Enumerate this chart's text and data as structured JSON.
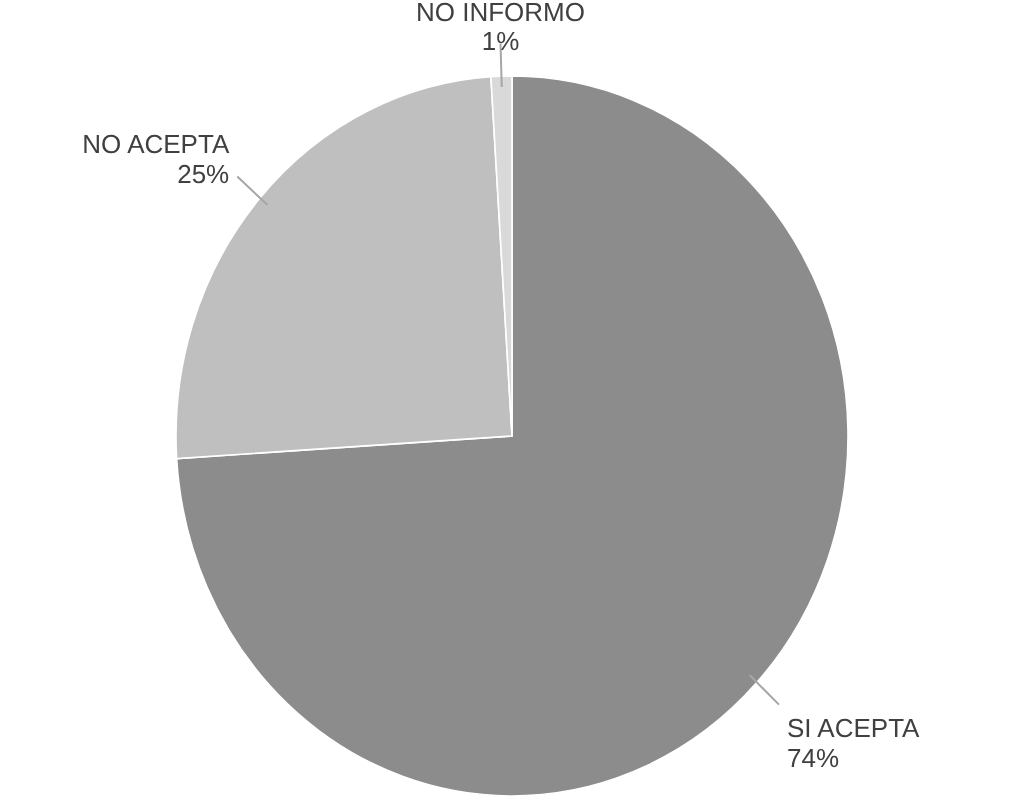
{
  "chart_data": {
    "type": "pie",
    "categories": [
      "SI ACEPTA",
      "NO ACEPTA",
      "NO INFORMO"
    ],
    "values": [
      74,
      25,
      1
    ],
    "colors": [
      "#8c8c8c",
      "#bfbfbf",
      "#d9d9d9"
    ],
    "value_labels": [
      "74%",
      "25%",
      "1%"
    ]
  }
}
